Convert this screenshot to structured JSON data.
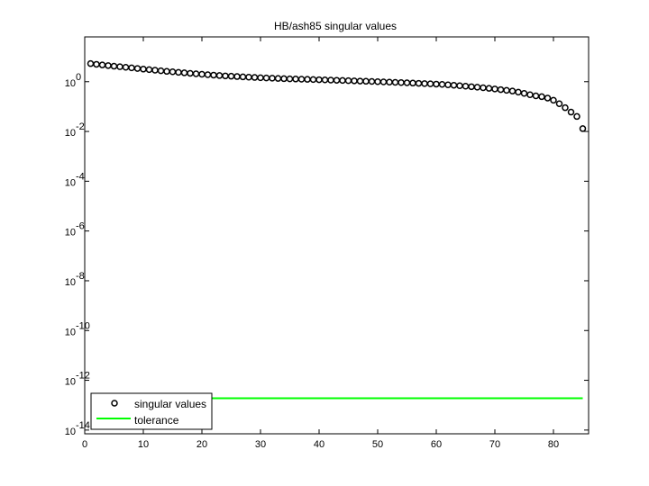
{
  "chart_data": {
    "type": "scatter",
    "title": "HB/ash85 singular values",
    "xlabel": "",
    "ylabel": "",
    "xlim": [
      0,
      86
    ],
    "ylim_log10": [
      -14.15,
      1.8
    ],
    "y_scale": "log",
    "x_ticks": [
      0,
      10,
      20,
      30,
      40,
      50,
      60,
      70,
      80
    ],
    "y_ticks": [
      {
        "base": "10",
        "exp": "0",
        "log10": 0
      },
      {
        "base": "10",
        "exp": "-2",
        "log10": -2
      },
      {
        "base": "10",
        "exp": "-4",
        "log10": -4
      },
      {
        "base": "10",
        "exp": "-6",
        "log10": -6
      },
      {
        "base": "10",
        "exp": "-8",
        "log10": -8
      },
      {
        "base": "10",
        "exp": "-10",
        "log10": -10
      },
      {
        "base": "10",
        "exp": "-12",
        "log10": -12
      },
      {
        "base": "10",
        "exp": "-14",
        "log10": -14
      }
    ],
    "grid": false,
    "legend_position": "bottom-left",
    "series": [
      {
        "name": "singular values",
        "marker": "circle",
        "color": "#000000",
        "x": [
          1,
          2,
          3,
          4,
          5,
          6,
          7,
          8,
          9,
          10,
          11,
          12,
          13,
          14,
          15,
          16,
          17,
          18,
          19,
          20,
          21,
          22,
          23,
          24,
          25,
          26,
          27,
          28,
          29,
          30,
          31,
          32,
          33,
          34,
          35,
          36,
          37,
          38,
          39,
          40,
          41,
          42,
          43,
          44,
          45,
          46,
          47,
          48,
          49,
          50,
          51,
          52,
          53,
          54,
          55,
          56,
          57,
          58,
          59,
          60,
          61,
          62,
          63,
          64,
          65,
          66,
          67,
          68,
          69,
          70,
          71,
          72,
          73,
          74,
          75,
          76,
          77,
          78,
          79,
          80,
          81,
          82,
          83,
          84,
          85
        ],
        "y": [
          5.33,
          5.0,
          4.7,
          4.45,
          4.2,
          4.0,
          3.8,
          3.6,
          3.4,
          3.2,
          3.05,
          2.9,
          2.75,
          2.6,
          2.5,
          2.38,
          2.27,
          2.17,
          2.08,
          1.99,
          1.91,
          1.84,
          1.77,
          1.71,
          1.66,
          1.61,
          1.56,
          1.52,
          1.48,
          1.44,
          1.41,
          1.38,
          1.35,
          1.32,
          1.3,
          1.28,
          1.26,
          1.24,
          1.22,
          1.2,
          1.18,
          1.16,
          1.14,
          1.12,
          1.1,
          1.08,
          1.06,
          1.04,
          1.02,
          1.0,
          0.98,
          0.96,
          0.94,
          0.92,
          0.9,
          0.88,
          0.86,
          0.84,
          0.82,
          0.8,
          0.78,
          0.75,
          0.72,
          0.69,
          0.66,
          0.63,
          0.6,
          0.57,
          0.54,
          0.51,
          0.48,
          0.45,
          0.42,
          0.38,
          0.34,
          0.3,
          0.27,
          0.25,
          0.22,
          0.18,
          0.13,
          0.09,
          0.06,
          0.04,
          0.013
        ]
      },
      {
        "name": "tolerance",
        "marker": "line",
        "color": "#00ff00",
        "x": [
          1,
          85
        ],
        "y": [
          1.9e-13,
          1.9e-13
        ]
      }
    ]
  }
}
